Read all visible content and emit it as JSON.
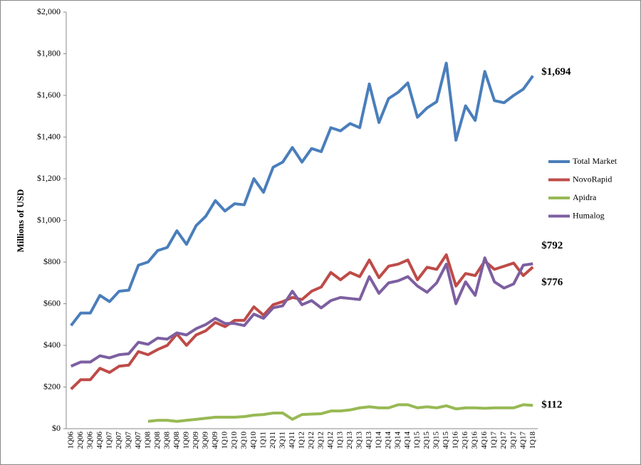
{
  "chart_data": {
    "type": "line",
    "ylabel": "Millions of USD",
    "categories": [
      "1Q06",
      "2Q06",
      "3Q06",
      "4Q06",
      "1Q07",
      "2Q07",
      "3Q07",
      "4Q07",
      "1Q08",
      "2Q08",
      "3Q08",
      "4Q08",
      "1Q09",
      "2Q09",
      "3Q09",
      "4Q09",
      "1Q10",
      "2Q10",
      "3Q10",
      "4Q10",
      "1Q11",
      "2Q11",
      "3Q11",
      "4Q11",
      "1Q12",
      "2Q12",
      "3Q12",
      "4Q12",
      "1Q13",
      "2Q13",
      "3Q13",
      "4Q13",
      "1Q14",
      "2Q14",
      "3Q14",
      "4Q14",
      "1Q15",
      "2Q15",
      "3Q15",
      "4Q15",
      "1Q16",
      "2Q16",
      "3Q16",
      "4Q16",
      "1Q17",
      "2Q17",
      "3Q17",
      "4Q17",
      "1Q18"
    ],
    "series": [
      {
        "name": "Total Market",
        "color": "#4a7ebb",
        "values": [
          495,
          555,
          555,
          640,
          610,
          660,
          665,
          785,
          800,
          855,
          870,
          950,
          885,
          975,
          1020,
          1095,
          1045,
          1080,
          1075,
          1200,
          1135,
          1255,
          1280,
          1350,
          1280,
          1345,
          1330,
          1445,
          1430,
          1465,
          1445,
          1655,
          1470,
          1585,
          1615,
          1660,
          1495,
          1540,
          1570,
          1755,
          1385,
          1550,
          1480,
          1715,
          1575,
          1565,
          1600,
          1630,
          1694
        ],
        "value_labels": [
          null,
          null,
          null,
          null,
          null,
          null,
          null,
          null,
          null,
          null,
          null,
          null,
          null,
          null,
          null,
          null,
          null,
          null,
          null,
          null,
          null,
          null,
          null,
          null,
          null,
          null,
          null,
          null,
          null,
          null,
          null,
          null,
          null,
          null,
          null,
          null,
          null,
          null,
          null,
          null,
          null,
          null,
          null,
          null,
          null,
          null,
          null,
          null,
          "$1,694"
        ]
      },
      {
        "name": "NovoRapid",
        "color": "#be4b48",
        "values": [
          190,
          235,
          235,
          290,
          270,
          300,
          305,
          370,
          355,
          380,
          400,
          455,
          400,
          450,
          470,
          510,
          490,
          520,
          520,
          585,
          545,
          595,
          610,
          630,
          620,
          660,
          680,
          750,
          715,
          750,
          730,
          810,
          725,
          780,
          790,
          810,
          715,
          775,
          765,
          835,
          685,
          745,
          735,
          805,
          765,
          780,
          795,
          735,
          776
        ],
        "value_labels": [
          null,
          null,
          null,
          null,
          null,
          null,
          null,
          null,
          null,
          null,
          null,
          null,
          null,
          null,
          null,
          null,
          null,
          null,
          null,
          null,
          null,
          null,
          null,
          null,
          null,
          null,
          null,
          null,
          null,
          null,
          null,
          null,
          null,
          null,
          null,
          null,
          null,
          null,
          null,
          null,
          null,
          null,
          null,
          null,
          null,
          null,
          null,
          null,
          "$776"
        ]
      },
      {
        "name": "Apidra",
        "color": "#98b954",
        "values": [
          null,
          null,
          null,
          null,
          null,
          null,
          null,
          null,
          35,
          40,
          40,
          35,
          40,
          45,
          50,
          55,
          55,
          55,
          58,
          65,
          68,
          75,
          75,
          45,
          68,
          70,
          72,
          85,
          85,
          90,
          100,
          105,
          100,
          100,
          115,
          115,
          100,
          105,
          100,
          110,
          95,
          100,
          100,
          98,
          100,
          100,
          100,
          115,
          112
        ],
        "value_labels": [
          null,
          null,
          null,
          null,
          null,
          null,
          null,
          null,
          null,
          null,
          null,
          null,
          null,
          null,
          null,
          null,
          null,
          null,
          null,
          null,
          null,
          null,
          null,
          null,
          null,
          null,
          null,
          null,
          null,
          null,
          null,
          null,
          null,
          null,
          null,
          null,
          null,
          null,
          null,
          null,
          null,
          null,
          null,
          null,
          null,
          null,
          null,
          null,
          "$112"
        ]
      },
      {
        "name": "Humalog",
        "color": "#7d5fa0",
        "values": [
          300,
          320,
          320,
          350,
          340,
          355,
          360,
          415,
          405,
          435,
          430,
          460,
          450,
          480,
          500,
          530,
          505,
          505,
          495,
          550,
          530,
          580,
          590,
          660,
          595,
          615,
          580,
          615,
          630,
          625,
          620,
          730,
          650,
          700,
          710,
          730,
          685,
          655,
          700,
          790,
          600,
          705,
          640,
          820,
          705,
          675,
          695,
          785,
          792
        ],
        "value_labels": [
          null,
          null,
          null,
          null,
          null,
          null,
          null,
          null,
          null,
          null,
          null,
          null,
          null,
          null,
          null,
          null,
          null,
          null,
          null,
          null,
          null,
          null,
          null,
          null,
          null,
          null,
          null,
          null,
          null,
          null,
          null,
          null,
          null,
          null,
          null,
          null,
          null,
          null,
          null,
          null,
          null,
          null,
          null,
          null,
          null,
          null,
          null,
          null,
          "$792"
        ]
      }
    ],
    "ylim": [
      0,
      2000
    ],
    "yticks": [
      {
        "value": 0,
        "label": "$0"
      },
      {
        "value": 200,
        "label": "$200"
      },
      {
        "value": 400,
        "label": "$400"
      },
      {
        "value": 600,
        "label": "$600"
      },
      {
        "value": 800,
        "label": "$800"
      },
      {
        "value": 1000,
        "label": "$1,000"
      },
      {
        "value": 1200,
        "label": "$1,200"
      },
      {
        "value": 1400,
        "label": "$1,400"
      },
      {
        "value": 1600,
        "label": "$1,600"
      },
      {
        "value": 1800,
        "label": "$1,800"
      },
      {
        "value": 2000,
        "label": "$2,000"
      }
    ],
    "grid": false,
    "legend": "right"
  }
}
